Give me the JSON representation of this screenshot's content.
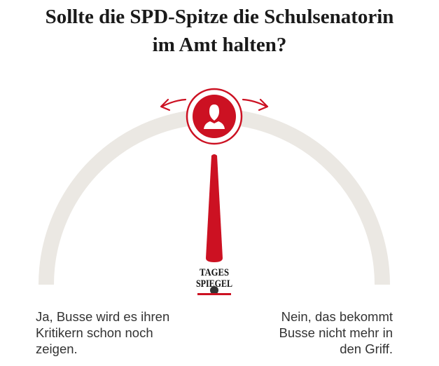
{
  "poll": {
    "question_line1": "Sollte die SPD-Spitze die Schulsenatorin",
    "question_line2": "im Amt halten?",
    "accent_color": "#cc1122",
    "track_color": "#ebe8e3",
    "vote_position": 0.5,
    "handle_icon": "user-silhouette-icon",
    "arrow_icons": [
      "arrow-left-icon",
      "arrow-right-icon"
    ]
  },
  "logo": {
    "line1": "TAGES",
    "line2": "SPIEGEL"
  },
  "answers": {
    "left": {
      "line1": "Ja, Busse wird es ihren",
      "line2": "Kritikern schon noch",
      "line3": "zeigen."
    },
    "right": {
      "line1": "Nein, das bekommt",
      "line2": "Busse nicht mehr in",
      "line3": "den Griff."
    }
  }
}
